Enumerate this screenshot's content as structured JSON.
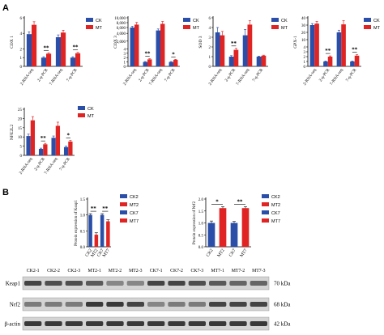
{
  "panel_labels": [
    "A",
    "B"
  ],
  "colors": {
    "ck": "#2b4fa8",
    "mt": "#e02424",
    "band_bg": "#d4d4d4"
  },
  "chart_data": [
    {
      "type": "bar",
      "id": "cox1",
      "ylabel": "COX 1",
      "categories": [
        "2-RNA-seq",
        "2-q-PCR",
        "7-RNA-seq",
        "7-q-PCR"
      ],
      "series": [
        {
          "name": "CK",
          "values": [
            3.9,
            1.0,
            3.5,
            1.0
          ]
        },
        {
          "name": "MT",
          "values": [
            5.1,
            1.45,
            4.1,
            1.5
          ]
        }
      ],
      "errors": [
        [
          0.3,
          0.1,
          0.3,
          0.1
        ],
        [
          0.4,
          0.1,
          0.3,
          0.1
        ]
      ],
      "ylim": [
        0,
        6
      ],
      "yticks": [
        "0",
        "1",
        "2",
        "4",
        "6"
      ],
      "annotations": [
        "**",
        "**"
      ],
      "legend": [
        "CK",
        "MT"
      ],
      "legend_position": "top-right"
    },
    {
      "type": "bar",
      "id": "cox3",
      "ylabel": "COX 3",
      "categories": [
        "2-RNA-seq",
        "2-q-PCR",
        "7-RNA-seq",
        "7-q-PCR"
      ],
      "series": [
        {
          "name": "CK",
          "values": [
            6000,
            1.0,
            5000,
            1.0
          ]
        },
        {
          "name": "MT",
          "values": [
            7200,
            1.6,
            7500,
            1.5
          ]
        }
      ],
      "errors": [
        [
          500,
          0.1,
          500,
          0.1
        ],
        [
          900,
          0.15,
          1000,
          0.1
        ]
      ],
      "ylim": [
        0,
        10000
      ],
      "yticks": [
        "0",
        "1",
        "2",
        "3",
        "4",
        "2,000",
        "4,000",
        "6,000",
        "8,000",
        "10,000"
      ],
      "annotations": [
        "**",
        "*"
      ],
      "legend": [
        "CK",
        "MT"
      ],
      "legend_position": "top-right"
    },
    {
      "type": "bar",
      "id": "sod3",
      "ylabel": "SOD 3",
      "categories": [
        "2-RNA-seq",
        "2-q-PCR",
        "7-RNA-seq",
        "7-q-PCR"
      ],
      "series": [
        {
          "name": "CK",
          "values": [
            3.5,
            1.0,
            3.2,
            1.0
          ]
        },
        {
          "name": "MT",
          "values": [
            3.2,
            1.7,
            4.6,
            1.1
          ]
        }
      ],
      "errors": [
        [
          0.5,
          0.1,
          0.6,
          0.05
        ],
        [
          0.4,
          0.15,
          0.8,
          0.05
        ]
      ],
      "ylim": [
        0,
        6
      ],
      "yticks": [
        "0",
        "1",
        "2",
        "3",
        "4",
        "6"
      ],
      "annotations": [
        "**"
      ],
      "legend": [
        "CK",
        "MT"
      ],
      "legend_position": "top-right"
    },
    {
      "type": "bar",
      "id": "gpx1",
      "ylabel": "GPX-1",
      "categories": [
        "2-RNA-seq",
        "2-q-PCR",
        "7-RNA-seq",
        "7-q-PCR"
      ],
      "series": [
        {
          "name": "CK",
          "values": [
            30,
            1.0,
            20,
            1.0
          ]
        },
        {
          "name": "MT",
          "values": [
            32,
            2.0,
            31,
            2.2
          ]
        }
      ],
      "errors": [
        [
          2,
          0.1,
          3,
          0.1
        ],
        [
          3,
          0.15,
          5,
          0.2
        ]
      ],
      "ylim": [
        0,
        40
      ],
      "yticks": [
        "0",
        "1",
        "2",
        "3",
        "4",
        "10",
        "20",
        "30",
        "40"
      ],
      "annotations": [
        "**",
        "**"
      ],
      "legend": [
        "CK",
        "MT"
      ],
      "legend_position": "top-right"
    },
    {
      "type": "bar",
      "id": "nfe2l2",
      "ylabel": "NFE2L2",
      "categories": [
        "2-RNA-seq",
        "2-q-PCR",
        "7-RNA-seq",
        "7-q-PCR"
      ],
      "series": [
        {
          "name": "CK",
          "values": [
            10.5,
            3.5,
            9.5,
            4.5
          ]
        },
        {
          "name": "MT",
          "values": [
            19,
            6.0,
            16,
            7.5
          ]
        }
      ],
      "errors": [
        [
          1.0,
          0.4,
          1.0,
          0.5
        ],
        [
          2.0,
          0.5,
          2.0,
          0.6
        ]
      ],
      "ylim": [
        0,
        25
      ],
      "yticks": [
        "0",
        "5",
        "10",
        "15",
        "20",
        "25"
      ],
      "annotations": [
        "**",
        "*"
      ],
      "legend": [
        "CK",
        "MT"
      ],
      "legend_position": "top-right"
    },
    {
      "type": "bar",
      "id": "keap1",
      "ylabel": "Protein expression of Keap1",
      "categories": [
        "CK2",
        "MT2",
        "CK7",
        "MT7"
      ],
      "series": [
        {
          "name": "Protein expression of Keap1",
          "values": [
            1.0,
            0.38,
            1.0,
            0.8
          ]
        }
      ],
      "errors": [
        0.04,
        0.06,
        0.04,
        0.05
      ],
      "ylim": [
        0,
        1.5
      ],
      "yticks": [
        "0.0",
        "0.5",
        "1.0",
        "1.5"
      ],
      "annotations": [
        "**",
        "**"
      ],
      "legend": [
        "CK2",
        "MT2",
        "CK7",
        "MT7"
      ],
      "legend_position": "right"
    },
    {
      "type": "bar",
      "id": "nrf2",
      "ylabel": "Protein expression of Nrf2",
      "categories": [
        "CK2",
        "MT2",
        "CK7",
        "MT7"
      ],
      "series": [
        {
          "name": "Protein expression of Nrf2",
          "values": [
            1.0,
            1.62,
            1.0,
            1.62
          ]
        }
      ],
      "errors": [
        0.08,
        0.06,
        0.06,
        0.06
      ],
      "ylim": [
        0,
        2.0
      ],
      "yticks": [
        "0.0",
        "0.5",
        "1.0",
        "1.5",
        "2.0"
      ],
      "annotations": [
        "*",
        "**"
      ],
      "legend": [
        "CK2",
        "MT2",
        "CK7",
        "MT7"
      ],
      "legend_position": "right"
    }
  ],
  "blot": {
    "lanes": [
      "CK2-1",
      "CK2-2",
      "CK2-3",
      "MT2-1",
      "MT2-2",
      "MT2-3",
      "CK7-1",
      "CK7-2",
      "CK7-3",
      "MT7-1",
      "MT7-2",
      "MT7-3"
    ],
    "rows": [
      {
        "label": "Keap1",
        "size": "70 kDa",
        "intensity": [
          0.85,
          0.8,
          0.8,
          0.75,
          0.55,
          0.55,
          0.85,
          0.85,
          0.8,
          0.75,
          0.7,
          0.7
        ]
      },
      {
        "label": "Nrf2",
        "size": "68 kDa",
        "intensity": [
          0.6,
          0.6,
          0.6,
          0.9,
          0.9,
          0.85,
          0.55,
          0.6,
          0.6,
          0.85,
          0.85,
          0.85
        ]
      },
      {
        "label": "β-actin",
        "size": "42 kDa",
        "intensity": [
          0.9,
          0.9,
          0.9,
          0.9,
          0.9,
          0.9,
          0.9,
          0.9,
          0.9,
          0.9,
          0.9,
          0.9
        ]
      }
    ]
  }
}
